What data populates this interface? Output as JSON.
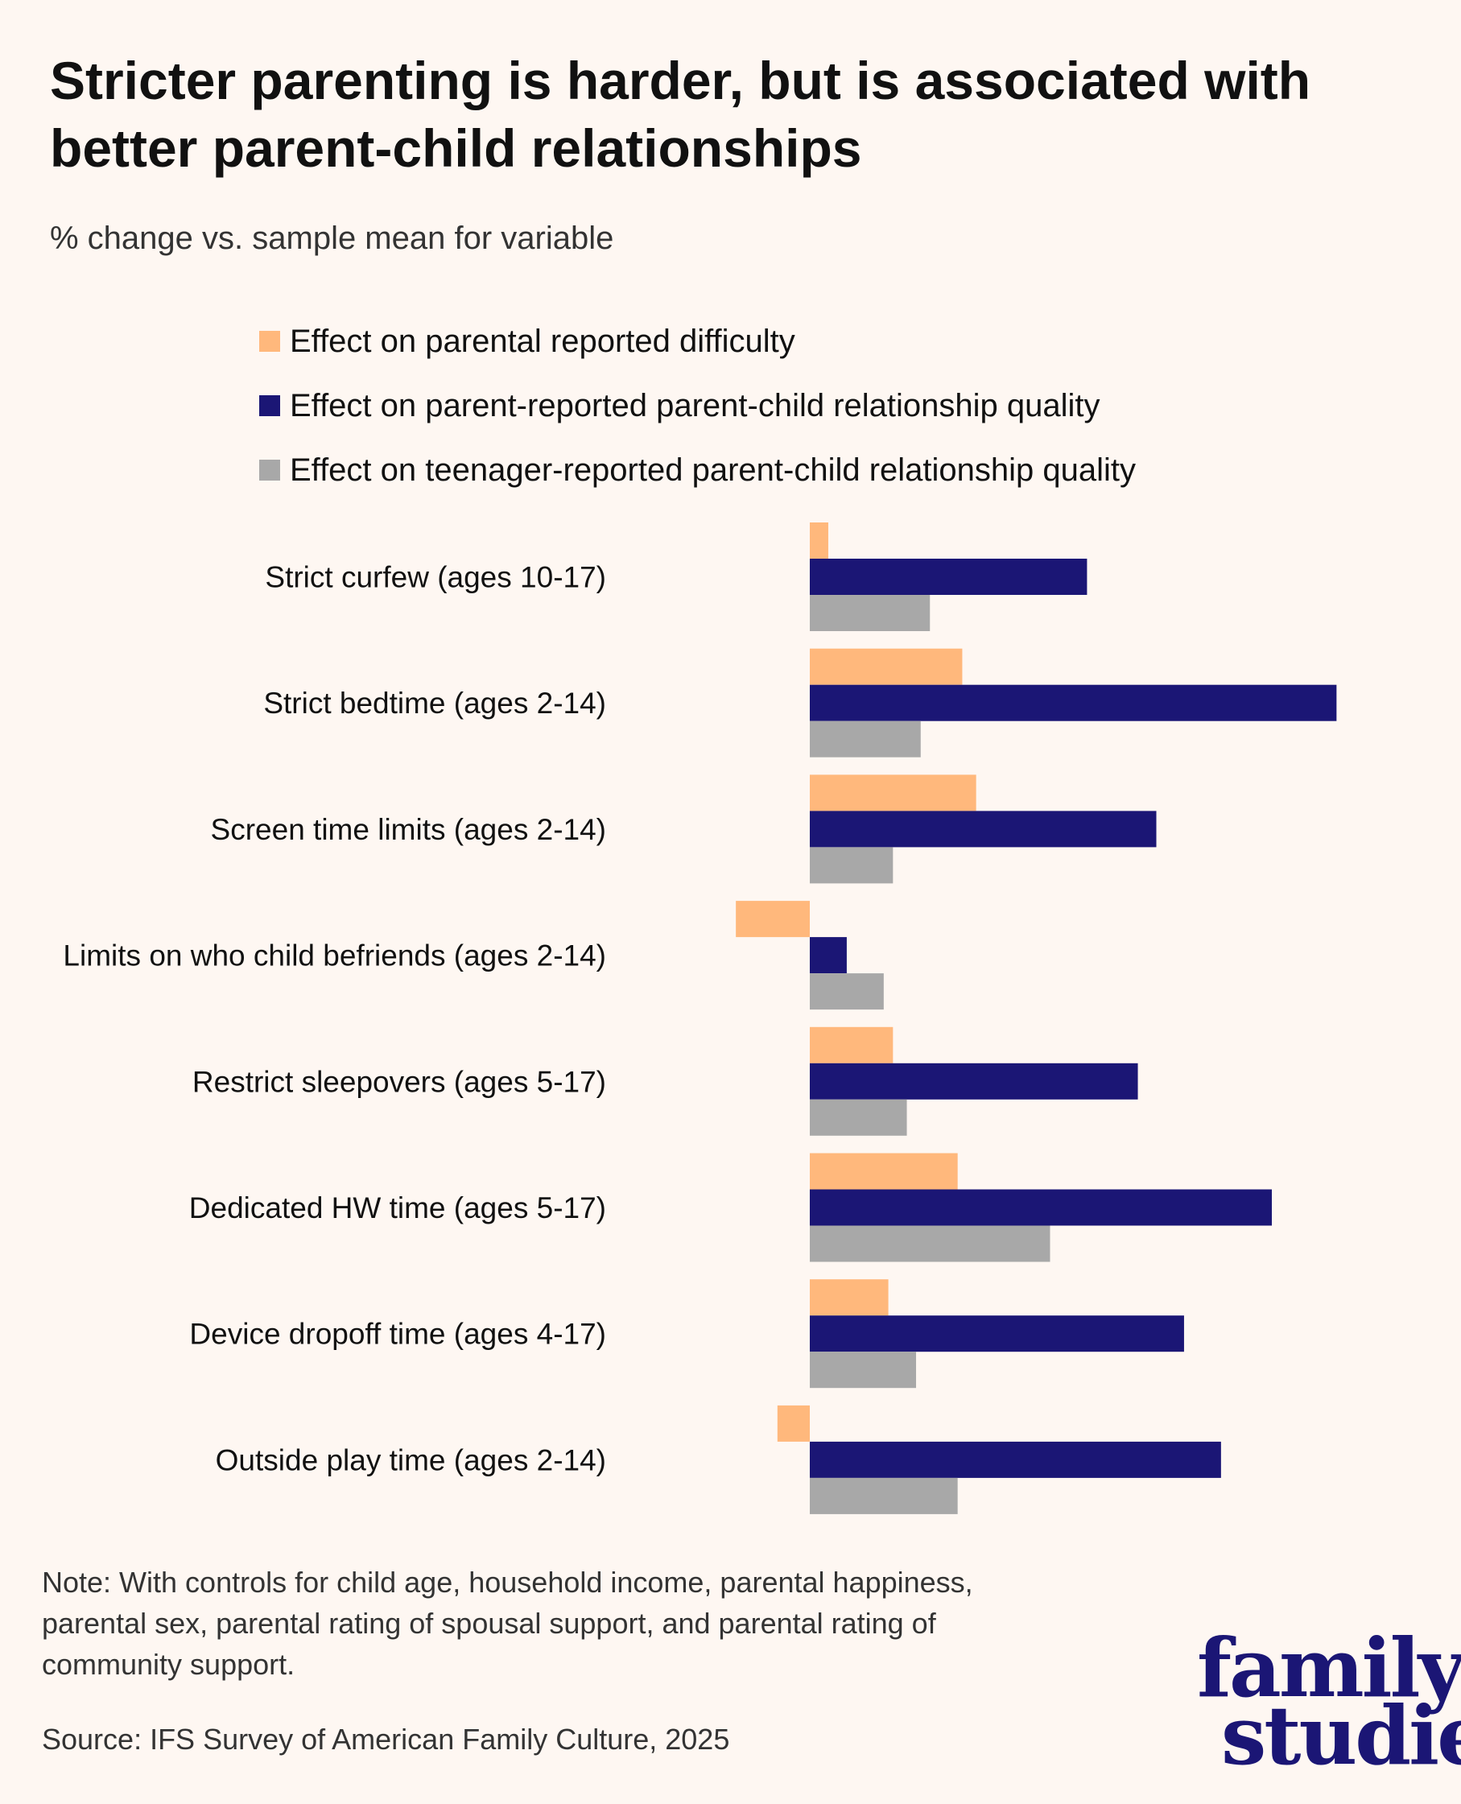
{
  "title": "Stricter parenting is harder, but is associated with better parent-child relationships",
  "subtitle": "% change vs. sample mean for variable",
  "note": "Note: With controls for child age, household income, parental happiness, parental sex, parental rating of spousal support, and parental rating of community support.",
  "source": "Source: IFS Survey of American Family Culture, 2025",
  "logo": {
    "line1": "family",
    "line2": "studies"
  },
  "chart_data": {
    "type": "bar",
    "orientation": "horizontal",
    "title": "Stricter parenting is harder, but is associated with better parent-child relationships",
    "ylabel": "% change vs. sample mean for variable",
    "axis_labels_shown": false,
    "grid": false,
    "legend_placement": "top",
    "categories": [
      "Strict curfew (ages 10-17)",
      "Strict bedtime (ages 2-14)",
      "Screen time limits (ages 2-14)",
      "Limits on who child befriends (ages 2-14)",
      "Restrict sleepovers (ages 5-17)",
      "Dedicated HW time (ages 5-17)",
      "Device dropoff time (ages 4-17)",
      "Outside play time (ages 2-14)"
    ],
    "series": [
      {
        "name": "Effect on parental reported difficulty",
        "color": "#ffb87c",
        "values": [
          0.4,
          3.3,
          3.6,
          -1.6,
          1.8,
          3.2,
          1.7,
          -0.7
        ]
      },
      {
        "name": "Effect on parent-reported parent-child relationship quality",
        "color": "#1b1675",
        "values": [
          6.0,
          11.4,
          7.5,
          0.8,
          7.1,
          10.0,
          8.1,
          8.9
        ]
      },
      {
        "name": "Effect on teenager-reported parent-child relationship quality",
        "color": "#a8a8a8",
        "values": [
          2.6,
          2.4,
          1.8,
          1.6,
          2.1,
          5.2,
          2.3,
          3.2
        ]
      }
    ]
  }
}
